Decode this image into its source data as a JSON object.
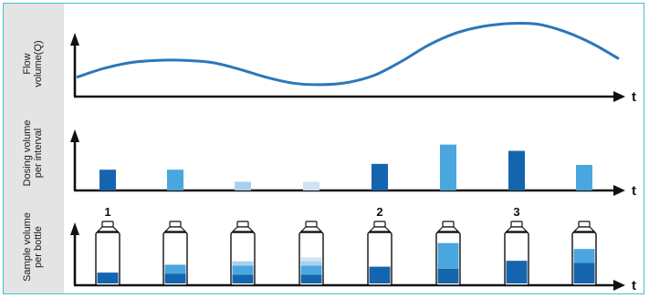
{
  "panels": {
    "flow": {
      "label": "Flow\nvolume(Q)",
      "axis_label": "t"
    },
    "dosing": {
      "label": "Dosing volume\nper interval",
      "axis_label": "t"
    },
    "sample": {
      "label": "Sample volume\nper bottle",
      "axis_label": "t"
    }
  },
  "colors": {
    "curve": "#2c77ba",
    "level_dark": "#1565ae",
    "level_mid": "#4aa6de",
    "level_light": "#a9cfee",
    "level_pale": "#cfe2f6",
    "bottle_outline": "#111111",
    "sidebar": "#e4e4e4",
    "frame": "#3cc4cc"
  },
  "chart_data": [
    {
      "type": "line",
      "title": "",
      "xlabel": "t",
      "ylabel": "Flow volume(Q)",
      "x": [
        0,
        1,
        2,
        3,
        4,
        5,
        6,
        7,
        8,
        9,
        10,
        11,
        12,
        13,
        14,
        15,
        16,
        17,
        18,
        19,
        20
      ],
      "series": [
        {
          "values": [
            0.2,
            0.32,
            0.4,
            0.43,
            0.43,
            0.4,
            0.31,
            0.2,
            0.12,
            0.1,
            0.13,
            0.23,
            0.42,
            0.64,
            0.8,
            0.89,
            0.93,
            0.92,
            0.82,
            0.66,
            0.45
          ]
        }
      ]
    },
    {
      "type": "bar",
      "title": "",
      "xlabel": "t",
      "ylabel": "Dosing volume per interval",
      "categories": [
        "1",
        "2",
        "3",
        "4",
        "5",
        "6",
        "7",
        "8"
      ],
      "values": [
        0.43,
        0.43,
        0.18,
        0.18,
        0.55,
        0.95,
        0.82,
        0.53
      ],
      "bar_colors": [
        "level_dark",
        "level_mid",
        "level_light",
        "level_pale",
        "level_dark",
        "level_mid",
        "level_dark",
        "level_mid"
      ]
    },
    {
      "type": "bar",
      "title": "",
      "xlabel": "t",
      "ylabel": "Sample volume per bottle",
      "bottle_labels": [
        "1",
        "",
        "",
        "",
        "2",
        "",
        "3",
        ""
      ],
      "bottles": [
        {
          "layers": [
            {
              "level": 0.22,
              "color": "level_dark"
            }
          ]
        },
        {
          "layers": [
            {
              "level": 0.2,
              "color": "level_dark"
            },
            {
              "level": 0.18,
              "color": "level_mid"
            }
          ]
        },
        {
          "layers": [
            {
              "level": 0.18,
              "color": "level_dark"
            },
            {
              "level": 0.18,
              "color": "level_mid"
            },
            {
              "level": 0.09,
              "color": "level_light"
            }
          ]
        },
        {
          "layers": [
            {
              "level": 0.18,
              "color": "level_dark"
            },
            {
              "level": 0.18,
              "color": "level_mid"
            },
            {
              "level": 0.09,
              "color": "level_light"
            },
            {
              "level": 0.08,
              "color": "level_pale"
            }
          ]
        },
        {
          "layers": [
            {
              "level": 0.34,
              "color": "level_dark"
            }
          ]
        },
        {
          "layers": [
            {
              "level": 0.3,
              "color": "level_dark"
            },
            {
              "level": 0.52,
              "color": "level_mid"
            }
          ]
        },
        {
          "layers": [
            {
              "level": 0.46,
              "color": "level_dark"
            }
          ]
        },
        {
          "layers": [
            {
              "level": 0.42,
              "color": "level_dark"
            },
            {
              "level": 0.28,
              "color": "level_mid"
            }
          ]
        }
      ]
    }
  ]
}
